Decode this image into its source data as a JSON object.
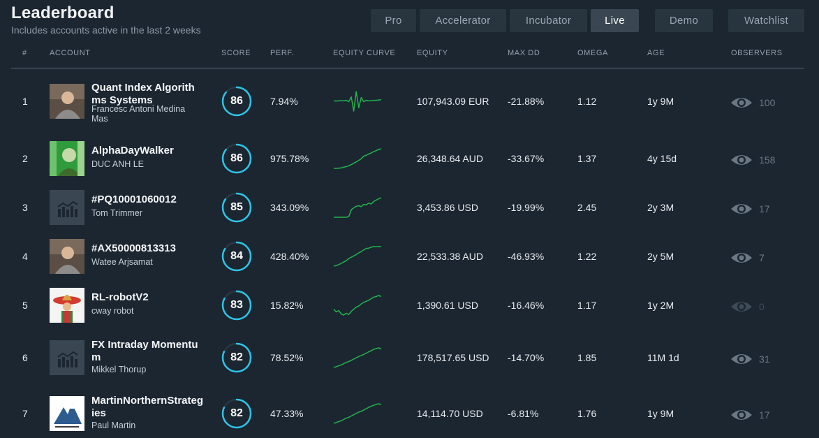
{
  "header": {
    "title": "Leaderboard",
    "subtitle": "Includes accounts active in the last 2 weeks"
  },
  "tabs": [
    {
      "label": "Pro",
      "active": false
    },
    {
      "label": "Accelerator",
      "active": false
    },
    {
      "label": "Incubator",
      "active": false
    },
    {
      "label": "Live",
      "active": true
    },
    {
      "label": "Demo",
      "active": false
    },
    {
      "label": "Watchlist",
      "active": false
    }
  ],
  "columns": [
    "#",
    "ACCOUNT",
    "SCORE",
    "PERF.",
    "EQUITY CURVE",
    "EQUITY",
    "MAX DD",
    "OMEGA",
    "AGE",
    "OBSERVERS"
  ],
  "colors": {
    "accent": "#2ec4e6",
    "equity_curve": "#22b34a",
    "background": "#1b2631"
  },
  "rows": [
    {
      "rank": "1",
      "name": "Quant Index Algorithms Systems",
      "owner": "Francesc Antoni Medina Mas",
      "avatar": "photo-avatar",
      "score": "86",
      "score_value": 86,
      "perf": "7.94%",
      "equity": "107,943.09 EUR",
      "max_dd": "-21.88%",
      "omega": "1.12",
      "age": "1y 9M",
      "observers": "100",
      "curve": [
        50,
        50,
        50,
        51,
        50,
        52,
        48,
        62,
        20,
        78,
        30,
        60,
        48,
        52,
        50,
        51,
        52,
        52,
        53,
        54
      ]
    },
    {
      "rank": "2",
      "name": "AlphaDayWalker",
      "owner": "DUC ANH LE",
      "avatar": "portrait-banknote-avatar",
      "score": "86",
      "score_value": 86,
      "perf": "975.78%",
      "equity": "26,348.64 AUD",
      "max_dd": "-33.67%",
      "omega": "1.37",
      "age": "4y 15d",
      "observers": "158",
      "curve": [
        2,
        2,
        3,
        4,
        8,
        10,
        14,
        20,
        26,
        33,
        40,
        48,
        60,
        64,
        70,
        75,
        82,
        86,
        92,
        95
      ]
    },
    {
      "rank": "3",
      "name": "#PQ10001060012",
      "owner": "Tom Trimmer",
      "avatar": "default-chart-avatar",
      "score": "85",
      "score_value": 85,
      "perf": "343.09%",
      "equity": "3,453.86 USD",
      "max_dd": "-19.99%",
      "omega": "2.45",
      "age": "2y 3M",
      "observers": "17",
      "curve": [
        5,
        5,
        5,
        5,
        5,
        5,
        8,
        40,
        48,
        55,
        58,
        54,
        64,
        62,
        70,
        66,
        78,
        84,
        90,
        95
      ]
    },
    {
      "rank": "4",
      "name": "#AX50000813313",
      "owner": "Watee Arjsamat",
      "avatar": "photo-avatar",
      "score": "84",
      "score_value": 84,
      "perf": "428.40%",
      "equity": "22,533.38 AUD",
      "max_dd": "-46.93%",
      "omega": "1.22",
      "age": "2y 5M",
      "observers": "7",
      "curve": [
        5,
        8,
        12,
        18,
        24,
        30,
        40,
        46,
        52,
        58,
        66,
        72,
        80,
        86,
        88,
        92,
        95,
        95,
        95,
        95
      ]
    },
    {
      "rank": "5",
      "name": "RL-robotV2",
      "owner": "cway robot",
      "avatar": "sombrero-avatar",
      "score": "83",
      "score_value": 83,
      "perf": "15.82%",
      "equity": "1,390.61 USD",
      "max_dd": "-16.46%",
      "omega": "1.17",
      "age": "1y 2M",
      "observers": "0",
      "curve": [
        40,
        30,
        35,
        22,
        18,
        25,
        20,
        32,
        40,
        48,
        52,
        60,
        66,
        70,
        74,
        80,
        86,
        88,
        92,
        88
      ]
    },
    {
      "rank": "6",
      "name": "FX Intraday Momentum",
      "owner": "Mikkel Thorup",
      "avatar": "default-chart-avatar",
      "score": "82",
      "score_value": 82,
      "perf": "78.52%",
      "equity": "178,517.65 USD",
      "max_dd": "-14.70%",
      "omega": "1.85",
      "age": "11M 1d",
      "observers": "31",
      "curve": [
        2,
        6,
        10,
        14,
        20,
        26,
        30,
        36,
        42,
        48,
        54,
        58,
        64,
        70,
        76,
        82,
        88,
        92,
        95,
        90
      ]
    },
    {
      "rank": "7",
      "name": "MartinNorthernStrategies",
      "owner": "Paul Martin",
      "avatar": "mountain-logo-avatar",
      "score": "82",
      "score_value": 82,
      "perf": "47.33%",
      "equity": "14,114.70 USD",
      "max_dd": "-6.81%",
      "omega": "1.76",
      "age": "1y 9M",
      "observers": "17",
      "curve": [
        4,
        8,
        12,
        16,
        22,
        28,
        32,
        38,
        44,
        50,
        56,
        60,
        66,
        72,
        78,
        84,
        88,
        92,
        95,
        92
      ]
    }
  ]
}
